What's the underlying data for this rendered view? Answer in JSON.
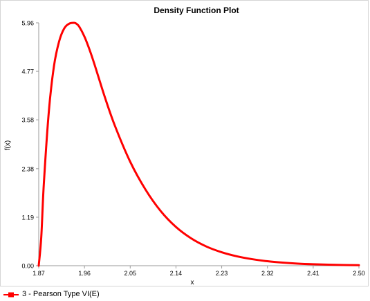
{
  "chart_data": {
    "type": "line",
    "title": "Density Function Plot",
    "xlabel": "x",
    "ylabel": "f(x)",
    "xlim": [
      1.87,
      2.5
    ],
    "ylim": [
      0,
      5.96
    ],
    "x_ticks": [
      "1.87",
      "1.96",
      "2.05",
      "2.14",
      "2.23",
      "2.32",
      "2.41",
      "2.50"
    ],
    "y_ticks": [
      "0.00",
      "1.19",
      "2.38",
      "3.58",
      "4.77",
      "5.96"
    ],
    "grid": false,
    "legend_position": "bottom-left",
    "series": [
      {
        "name": "3 - Pearson Type VI(E)",
        "color": "#ff0000",
        "x": [
          1.87,
          1.875,
          1.88,
          1.89,
          1.9,
          1.91,
          1.92,
          1.93,
          1.94,
          1.945,
          1.95,
          1.96,
          1.97,
          1.98,
          2.0,
          2.02,
          2.05,
          2.08,
          2.11,
          2.14,
          2.17,
          2.2,
          2.23,
          2.26,
          2.29,
          2.32,
          2.35,
          2.38,
          2.41,
          2.44,
          2.47,
          2.5
        ],
        "y": [
          0.0,
          0.7,
          2.0,
          3.8,
          4.9,
          5.5,
          5.82,
          5.94,
          5.96,
          5.93,
          5.86,
          5.62,
          5.3,
          4.93,
          4.14,
          3.43,
          2.55,
          1.87,
          1.34,
          0.95,
          0.67,
          0.47,
          0.33,
          0.23,
          0.16,
          0.11,
          0.076,
          0.052,
          0.036,
          0.025,
          0.017,
          0.012
        ]
      }
    ]
  }
}
